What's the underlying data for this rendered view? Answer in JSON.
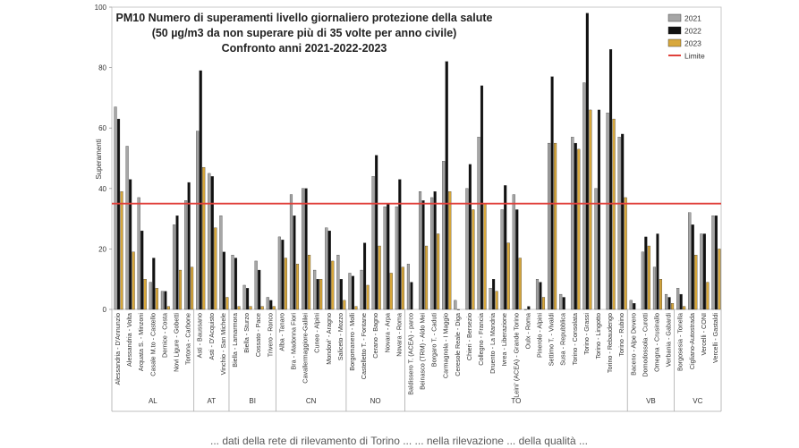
{
  "chart_data": {
    "type": "bar",
    "title_lines": [
      "PM10  Numero di superamenti livello giornaliero protezione della salute",
      "(50 µg/m3 da non superare più di 35 volte per anno civile)",
      "Confronto anni 2021-2022-2023"
    ],
    "ylabel": "Superamenti",
    "ylim": [
      0,
      100
    ],
    "yticks": [
      0,
      20,
      40,
      60,
      80,
      100
    ],
    "limit": {
      "name": "Limite",
      "value": 35,
      "color": "#e0403a"
    },
    "legend_position": "top-right",
    "categories": [
      "Alessandria - D'Annunzio",
      "Alessandria - Volta",
      "Arquata S. - Minzoni",
      "Casale M.to - Castello",
      "Dernice - Costa",
      "Novi Ligure - Gobetti",
      "Tortona - Carbone",
      "Asti - Baussano",
      "Asti - D'Acquisto",
      "Vinchio - San Michele",
      "Biella - Lamarmora",
      "Biella - Sturzo",
      "Cossato - Pace",
      "Trivero - Ronco",
      "Alba - Tanaro",
      "Bra - Madonna Fiori",
      "Cavallermaggiore-Galilei",
      "Cuneo - Alpini",
      "Mondovi' - Aragno",
      "Saliceto - Mozzo",
      "Borgomanero - Molli",
      "Castelletto T. - Fontane",
      "Cerano - Bagno",
      "Novara - Arpa",
      "Novara - Roma",
      "Baldissero T. (ACEA) - parco",
      "Beinasco (TRM) - Aldo Mei",
      "Borgaro T. - Caduti",
      "Carmagnola - I Maggio",
      "Ceresole Reale - Diga",
      "Chieri - Bersezio",
      "Collegno - Francia",
      "Druento - La Mandria",
      "Ivrea - Liberazione",
      "Leini' (ACEA) - Grande Torino",
      "Oulx - Roma",
      "Pinerolo - Alpini",
      "Settimo T. - Vivaldi",
      "Susa - Repubblica",
      "Torino - Consolata",
      "Torino - Grassi",
      "Torino - Lingotto",
      "Torino - Rebaudengo",
      "Torino - Rubino",
      "Baceno - Alpe Devero",
      "Domodossola - Curotti",
      "Omegna - Crusinallo",
      "Verbania - Gabardi",
      "Borgosesia - Tonella",
      "Cigliano-Autostrada",
      "Vercelli - CONI",
      "Vercelli - Gastaldi"
    ],
    "groups": [
      {
        "label": "AL",
        "count": 7
      },
      {
        "label": "AT",
        "count": 3
      },
      {
        "label": "BI",
        "count": 4
      },
      {
        "label": "CN",
        "count": 6
      },
      {
        "label": "NO",
        "count": 5
      },
      {
        "label": "TO",
        "count": 19
      },
      {
        "label": "VB",
        "count": 4
      },
      {
        "label": "VC",
        "count": 4
      }
    ],
    "series": [
      {
        "name": "2021",
        "color": "#a6a6a6",
        "values": [
          67,
          54,
          37,
          9,
          6,
          28,
          36,
          59,
          45,
          31,
          18,
          8,
          16,
          4,
          24,
          38,
          40,
          13,
          27,
          18,
          12,
          13,
          44,
          34,
          34,
          15,
          39,
          37,
          49,
          3,
          40,
          57,
          7,
          33,
          38,
          0,
          10,
          55,
          5,
          57,
          75,
          40,
          65,
          57,
          3,
          19,
          14,
          5,
          7,
          32,
          25,
          31
        ]
      },
      {
        "name": "2022",
        "color": "#111111",
        "values": [
          63,
          43,
          26,
          17,
          6,
          31,
          42,
          79,
          44,
          19,
          17,
          7,
          13,
          3,
          23,
          31,
          40,
          10,
          26,
          10,
          11,
          22,
          51,
          35,
          43,
          9,
          36,
          39,
          82,
          0,
          48,
          74,
          10,
          41,
          33,
          1,
          9,
          77,
          4,
          55,
          98,
          66,
          86,
          58,
          2,
          24,
          25,
          4,
          5,
          28,
          25,
          31
        ]
      },
      {
        "name": "2023",
        "color": "#d8a83c",
        "values": [
          39,
          19,
          10,
          7,
          1,
          13,
          14,
          47,
          27,
          4,
          1,
          1,
          1,
          1,
          17,
          15,
          18,
          10,
          16,
          3,
          1,
          8,
          21,
          12,
          14,
          null,
          21,
          25,
          39,
          null,
          33,
          35,
          6,
          22,
          17,
          null,
          4,
          55,
          null,
          53,
          66,
          null,
          63,
          37,
          null,
          21,
          10,
          2,
          1,
          18,
          9,
          20
        ]
      }
    ]
  },
  "footer_text": "... dati della rete di rilevamento di Torino ... ... nella rilevazione ... della qualità ..."
}
